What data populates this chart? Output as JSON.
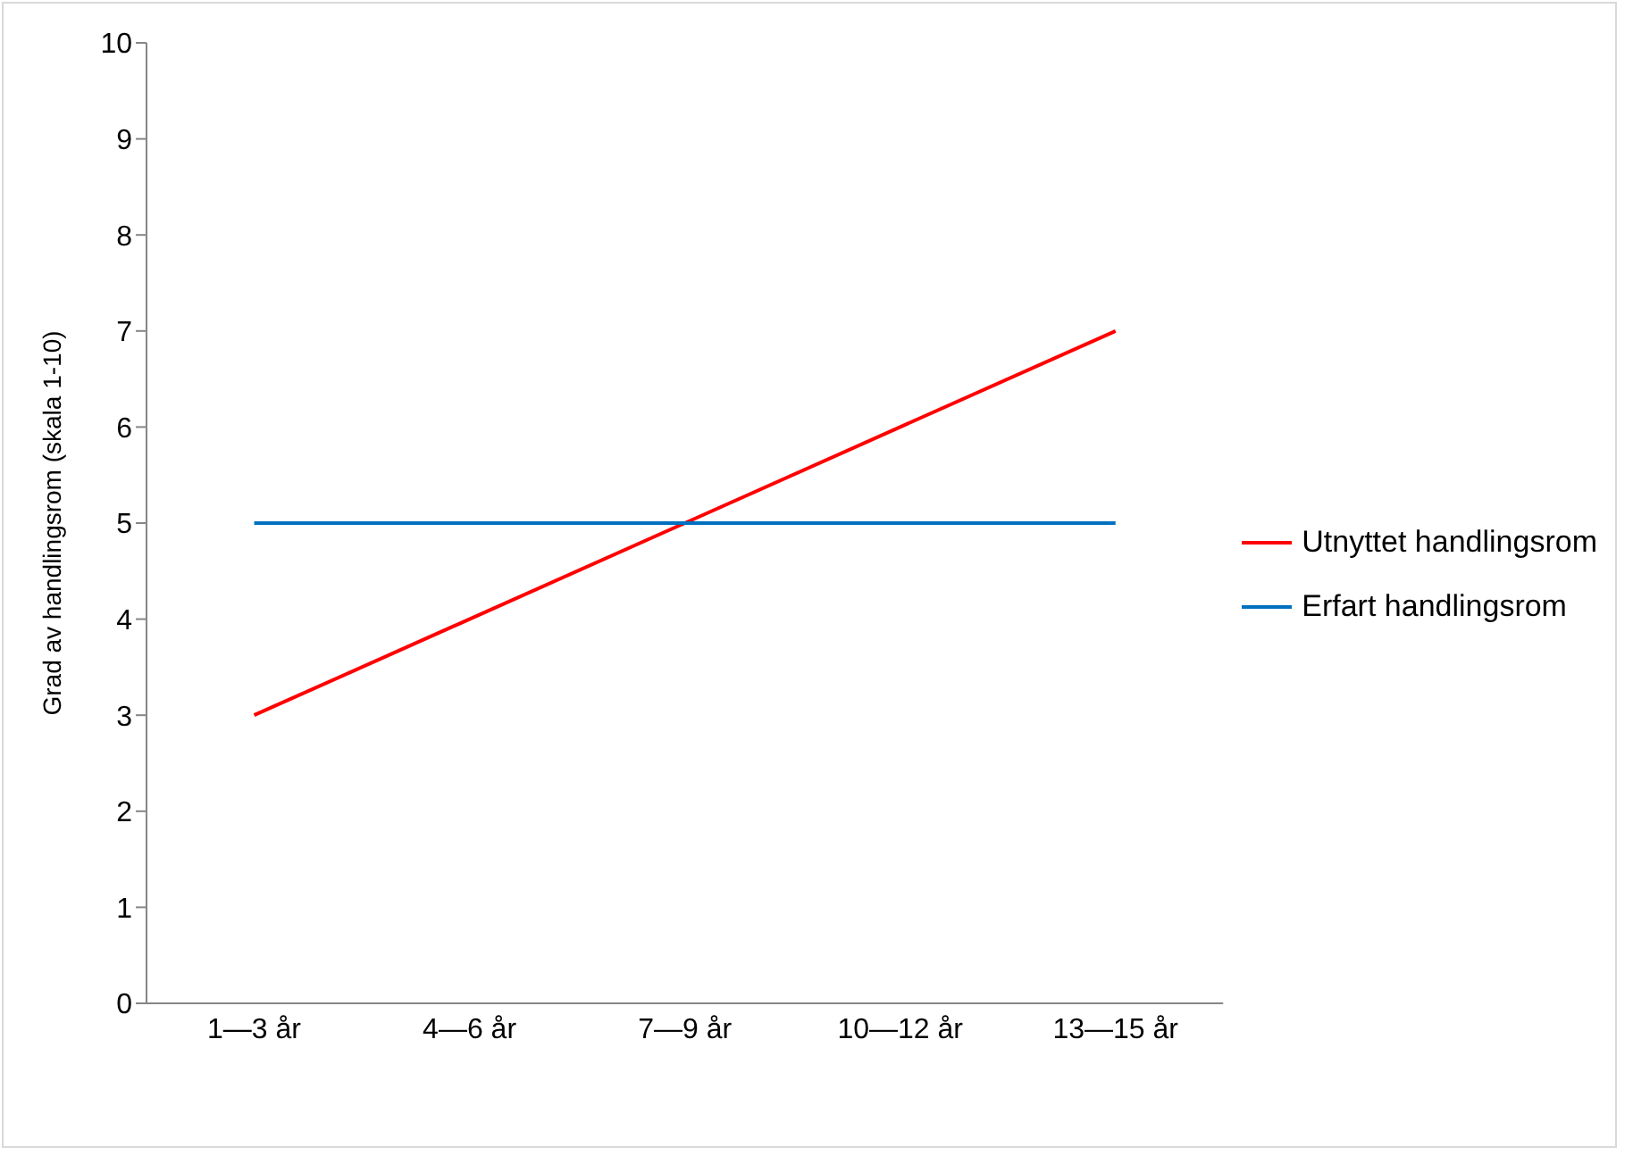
{
  "chart_data": {
    "type": "line",
    "ylabel": "Grad av handlingsrom (skala 1-10)",
    "categories": [
      "1—3 år",
      "4—6 år",
      "7—9 år",
      "10—12 år",
      "13—15 år"
    ],
    "series": [
      {
        "name": "Utnyttet handlingsrom",
        "color": "#ff0000",
        "values": [
          3,
          4,
          5,
          6,
          7
        ]
      },
      {
        "name": "Erfart handlingsrom",
        "color": "#0070c0",
        "values": [
          5,
          5,
          5,
          5,
          5
        ]
      }
    ],
    "ylim": [
      0,
      10
    ],
    "yticks": [
      0,
      1,
      2,
      3,
      4,
      5,
      6,
      7,
      8,
      9,
      10
    ],
    "legend": "right",
    "marker": "none",
    "line_style": "solid"
  }
}
